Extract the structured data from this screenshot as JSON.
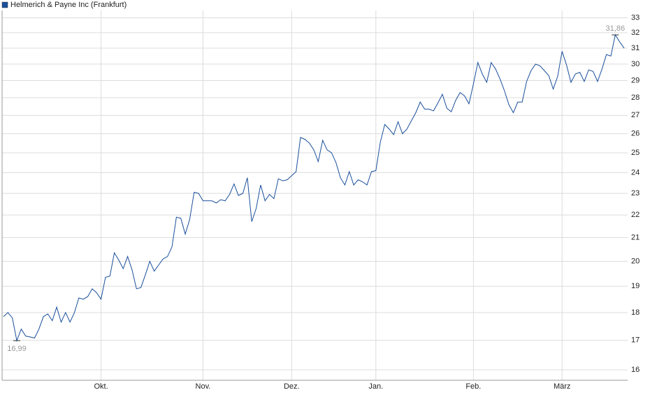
{
  "chart_data": {
    "type": "line",
    "log_scale": true,
    "grid": true,
    "legend": "top-left",
    "max_label": "31,86",
    "min_label": "16,99",
    "ylim": [
      15.66,
      33.5
    ],
    "yticks": [
      16,
      17,
      18,
      19,
      20,
      21,
      22,
      23,
      24,
      25,
      26,
      27,
      28,
      29,
      30,
      31,
      32,
      33
    ],
    "categories": [
      null,
      null,
      null,
      null,
      null,
      null,
      null,
      null,
      null,
      null,
      null,
      null,
      null,
      null,
      null,
      null,
      null,
      null,
      null,
      null,
      null,
      null,
      "Okt.",
      null,
      null,
      null,
      null,
      null,
      null,
      null,
      null,
      null,
      null,
      null,
      null,
      null,
      null,
      null,
      null,
      null,
      null,
      null,
      null,
      null,
      null,
      "Nov.",
      null,
      null,
      null,
      null,
      null,
      null,
      null,
      null,
      null,
      null,
      null,
      null,
      null,
      null,
      null,
      null,
      null,
      null,
      null,
      "Dez.",
      null,
      null,
      null,
      null,
      null,
      null,
      null,
      null,
      null,
      null,
      null,
      null,
      null,
      null,
      null,
      null,
      null,
      null,
      "Jan.",
      null,
      null,
      null,
      null,
      null,
      null,
      null,
      null,
      null,
      null,
      null,
      null,
      null,
      null,
      null,
      null,
      null,
      null,
      null,
      null,
      null,
      "Feb.",
      null,
      null,
      null,
      null,
      null,
      null,
      null,
      null,
      null,
      null,
      null,
      null,
      null,
      null,
      null,
      null,
      null,
      null,
      null,
      "März",
      null,
      null,
      null,
      null,
      null,
      null,
      null,
      null,
      null,
      null,
      null,
      null,
      null,
      null
    ],
    "series": [
      {
        "name": "Helmerich & Payne Inc (Frankfurt)",
        "color": "#1a4f9c",
        "values": [
          17.85,
          18.0,
          17.8,
          16.99,
          17.4,
          17.15,
          17.12,
          17.08,
          17.4,
          17.85,
          17.95,
          17.7,
          18.2,
          17.65,
          18.0,
          17.65,
          18.0,
          18.55,
          18.5,
          18.6,
          18.9,
          18.75,
          18.5,
          19.35,
          19.4,
          20.35,
          20.05,
          19.7,
          20.2,
          19.65,
          18.9,
          18.95,
          19.45,
          20.0,
          19.6,
          19.85,
          20.1,
          20.2,
          20.6,
          21.9,
          21.85,
          21.15,
          21.8,
          23.05,
          23.0,
          22.65,
          22.65,
          22.65,
          22.55,
          22.7,
          22.65,
          22.95,
          23.45,
          22.9,
          23.0,
          23.75,
          21.7,
          22.3,
          23.4,
          22.65,
          22.95,
          22.75,
          23.7,
          23.6,
          23.65,
          23.85,
          24.05,
          25.8,
          25.7,
          25.5,
          25.15,
          24.55,
          25.65,
          25.15,
          25.0,
          24.5,
          23.75,
          23.4,
          24.05,
          23.4,
          23.65,
          23.55,
          23.4,
          24.05,
          24.1,
          25.55,
          26.5,
          26.25,
          25.95,
          26.65,
          26.0,
          26.25,
          26.7,
          27.15,
          27.75,
          27.35,
          27.35,
          27.25,
          27.7,
          28.2,
          27.4,
          27.2,
          27.85,
          28.3,
          28.1,
          27.65,
          28.8,
          30.1,
          29.4,
          28.9,
          30.1,
          29.7,
          29.1,
          28.4,
          27.6,
          27.15,
          27.75,
          27.75,
          28.95,
          29.6,
          30.0,
          29.9,
          29.6,
          29.3,
          28.5,
          29.25,
          30.8,
          29.95,
          28.9,
          29.4,
          29.5,
          28.95,
          29.65,
          29.55,
          28.95,
          29.7,
          30.6,
          30.5,
          31.86,
          31.4,
          31.0
        ]
      }
    ]
  }
}
